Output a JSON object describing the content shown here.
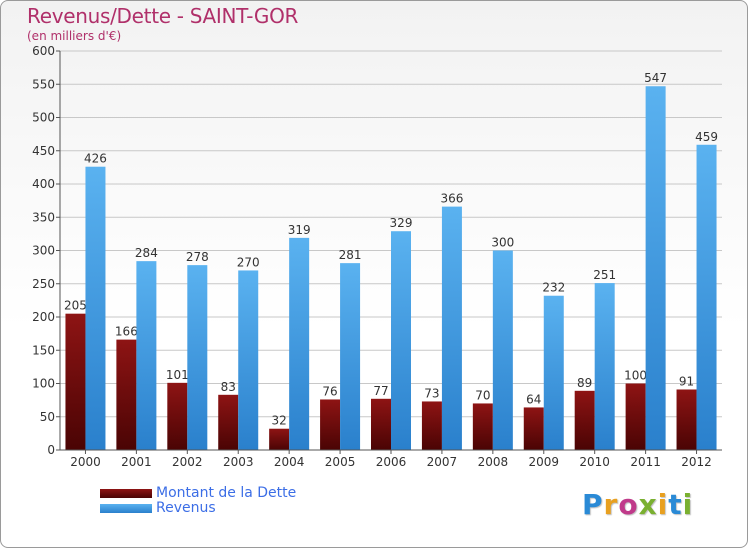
{
  "chart_data": {
    "type": "bar",
    "title": "Revenus/Dette - SAINT-GOR",
    "subtitle": "(en milliers d'€)",
    "categories": [
      "2000",
      "2001",
      "2002",
      "2003",
      "2004",
      "2005",
      "2006",
      "2007",
      "2008",
      "2009",
      "2010",
      "2011",
      "2012"
    ],
    "series": [
      {
        "name": "Montant de la Dette",
        "color": "#7a0a0a",
        "values": [
          205,
          166,
          101,
          83,
          32,
          76,
          77,
          73,
          70,
          64,
          89,
          100,
          91
        ]
      },
      {
        "name": "Revenus",
        "color": "#3a9ee6",
        "values": [
          426,
          284,
          278,
          270,
          319,
          281,
          329,
          366,
          300,
          232,
          251,
          547,
          459
        ]
      }
    ],
    "ylim": [
      0,
      600
    ],
    "yticks": [
      0,
      50,
      100,
      150,
      200,
      250,
      300,
      350,
      400,
      450,
      500,
      550,
      600
    ],
    "grid": true,
    "legend_placement": "bottom-left"
  },
  "logo": {
    "letters": [
      {
        "ch": "P",
        "color": "#2a8ad6"
      },
      {
        "ch": "r",
        "color": "#e8a020"
      },
      {
        "ch": "o",
        "color": "#c03a8a"
      },
      {
        "ch": "x",
        "color": "#7ab030"
      },
      {
        "ch": "i",
        "color": "#e8a020"
      },
      {
        "ch": "t",
        "color": "#2a8ad6"
      },
      {
        "ch": "i",
        "color": "#7ab030"
      }
    ]
  }
}
